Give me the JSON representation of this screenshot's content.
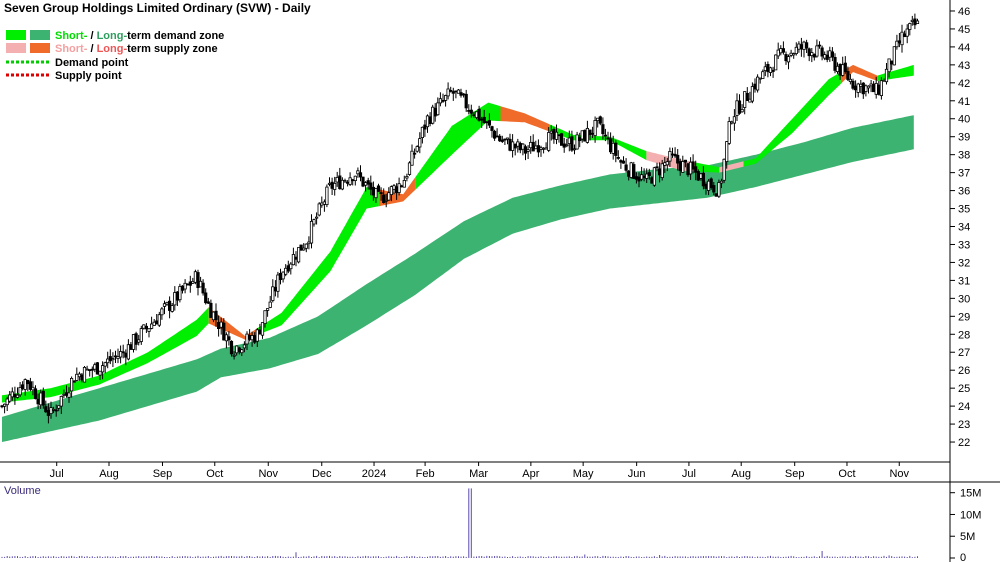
{
  "title": "Seven Group Holdings Limited Ordinary (SVW) - Daily",
  "legend": {
    "demand": {
      "short": "Short-",
      "sep": " / ",
      "long": "Long-",
      "rest": "term demand zone"
    },
    "supply": {
      "short": "Short-",
      "sep": " / ",
      "long": "Long-",
      "rest": "term supply zone"
    },
    "demand_point": "Demand point",
    "supply_point": "Supply point"
  },
  "colors": {
    "short_demand": "#00ee00",
    "long_demand": "#3cb371",
    "short_supply": "#f4b0b0",
    "long_supply": "#f06a2a",
    "demand_point": "#00cc00",
    "supply_point": "#dd0000",
    "candle": "#000000",
    "volume": "#5a4aaa",
    "short_text_demand": "#00dd00",
    "long_text_demand": "#2e9e5e",
    "short_text_supply": "#f4a0a0",
    "long_text_supply": "#ee5555"
  },
  "chart_data": {
    "type": "line",
    "title": "Seven Group Holdings Limited Ordinary (SVW) - Daily",
    "y_ticks": [
      22,
      23,
      24,
      25,
      26,
      27,
      28,
      29,
      30,
      31,
      32,
      33,
      34,
      35,
      36,
      37,
      38,
      39,
      40,
      41,
      42,
      43,
      44,
      45,
      46
    ],
    "ylim": [
      21.0,
      46.5
    ],
    "x_labels": [
      "Jul",
      "Aug",
      "Sep",
      "Oct",
      "Nov",
      "Dec",
      "2024",
      "Feb",
      "Mar",
      "Apr",
      "May",
      "Jun",
      "Jul",
      "Aug",
      "Sep",
      "Oct",
      "Nov"
    ],
    "x_label_weeks": [
      4.5,
      8.8,
      13.2,
      17.5,
      21.9,
      26.3,
      30.6,
      34.8,
      39.2,
      43.5,
      47.8,
      52.2,
      56.5,
      60.8,
      65.2,
      69.5,
      73.8
    ],
    "weeks": 76,
    "close_series": {
      "week": [
        0,
        2,
        4,
        6,
        8,
        10,
        12,
        14,
        16,
        17,
        19,
        21,
        23,
        25,
        27,
        29,
        31,
        33,
        35,
        37,
        39,
        41,
        43,
        45,
        47,
        49,
        51,
        53,
        55,
        57,
        59,
        60,
        61,
        62,
        64,
        66,
        68,
        70,
        72,
        73,
        74,
        75
      ],
      "close": [
        24.0,
        25.5,
        23.5,
        25.7,
        26.2,
        27.0,
        28.4,
        29.8,
        31.2,
        29.6,
        27.2,
        28.0,
        31.5,
        33.2,
        36.2,
        37.0,
        35.5,
        36.5,
        40.0,
        41.5,
        40.3,
        38.8,
        38.2,
        38.9,
        38.6,
        39.6,
        37.5,
        36.5,
        37.8,
        37.0,
        36.0,
        40.2,
        41.0,
        42.0,
        43.5,
        44.0,
        43.4,
        42.0,
        41.5,
        43.0,
        44.5,
        45.2
      ]
    },
    "short_zone": {
      "week": [
        0,
        4,
        8,
        12,
        16,
        17,
        20,
        23,
        27,
        30,
        33,
        37,
        40,
        43,
        47,
        50,
        53,
        56,
        59,
        62,
        65,
        68,
        70,
        72,
        75
      ],
      "upper": [
        24.6,
        25.0,
        25.7,
        27.0,
        28.8,
        29.5,
        27.9,
        29.2,
        32.6,
        36.2,
        35.8,
        39.6,
        40.9,
        40.3,
        39.1,
        39.0,
        38.2,
        37.7,
        37.3,
        37.8,
        40.0,
        42.2,
        43.0,
        42.4,
        43.0
      ],
      "lower": [
        24.2,
        24.5,
        25.2,
        26.4,
        27.9,
        28.6,
        27.7,
        28.5,
        31.5,
        35.0,
        35.4,
        38.0,
        39.9,
        39.8,
        38.8,
        38.8,
        37.7,
        37.1,
        37.0,
        37.5,
        39.2,
        41.3,
        42.6,
        42.1,
        42.4
      ],
      "supply_segments": [
        [
          17,
          21,
          "long"
        ],
        [
          31,
          34,
          "long"
        ],
        [
          41,
          45,
          "long"
        ],
        [
          53,
          57,
          "short"
        ],
        [
          59,
          61,
          "short"
        ],
        [
          69,
          72,
          "long"
        ]
      ]
    },
    "long_zone": {
      "week": [
        0,
        4,
        8,
        12,
        16,
        18,
        22,
        26,
        30,
        34,
        38,
        42,
        46,
        50,
        54,
        58,
        62,
        66,
        70,
        75
      ],
      "upper": [
        23.4,
        24.2,
        25.0,
        25.8,
        26.6,
        27.2,
        27.8,
        29.0,
        30.8,
        32.5,
        34.3,
        35.6,
        36.3,
        36.9,
        37.2,
        37.4,
        38.0,
        38.7,
        39.5,
        40.2
      ],
      "lower": [
        22.0,
        22.6,
        23.2,
        24.0,
        24.8,
        25.6,
        26.1,
        26.9,
        28.5,
        30.2,
        32.2,
        33.6,
        34.4,
        35.0,
        35.3,
        35.6,
        36.2,
        36.9,
        37.6,
        38.3
      ]
    },
    "volume": {
      "y_ticks_label": [
        "0",
        "5M",
        "10M",
        "15M"
      ],
      "y_ticks": [
        0,
        5,
        10,
        15
      ],
      "ylim": [
        0,
        17
      ],
      "spikes": [
        [
          38.5,
          16
        ],
        [
          24.1,
          1.3
        ],
        [
          48.0,
          0.8
        ],
        [
          54.0,
          0.7
        ],
        [
          67.5,
          1.6
        ],
        [
          73.0,
          0.6
        ]
      ],
      "base": 0.35,
      "title": "Volume"
    }
  }
}
